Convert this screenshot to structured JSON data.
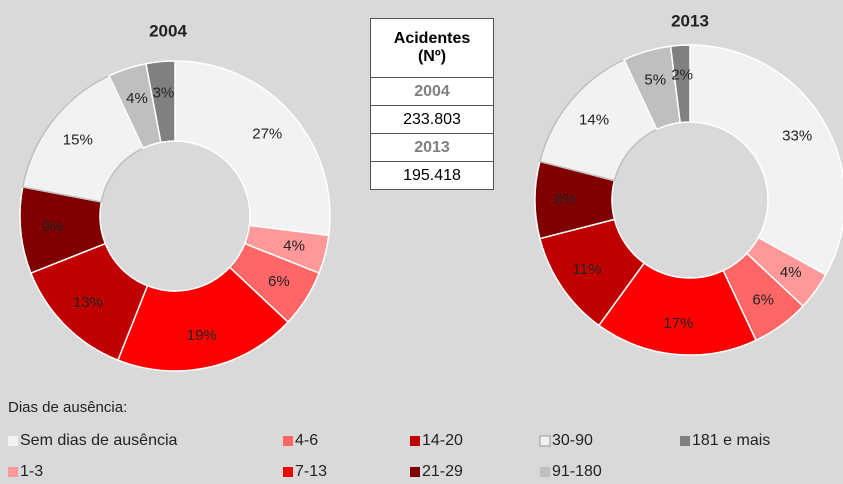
{
  "chart_data": {
    "type": "donut",
    "categories": [
      "Sem dias de ausência",
      "1-3",
      "4-6",
      "7-13",
      "14-20",
      "21-29",
      "30-90",
      "91-180",
      "181 e mais"
    ],
    "colors": [
      "#f2f2f2",
      "#ff9999",
      "#ff6666",
      "#ff0000",
      "#c00000",
      "#800000",
      "#f2f2f2",
      "#bfbfbf",
      "#808080"
    ],
    "legend_title": "Dias de ausência:",
    "series": [
      {
        "name": "2004",
        "values": [
          27,
          4,
          6,
          19,
          13,
          9,
          15,
          4,
          3
        ],
        "value_labels": [
          "27%",
          "4%",
          "6%",
          "19%",
          "13%",
          "9%",
          "15%",
          "4%",
          "3%"
        ]
      },
      {
        "name": "2013",
        "values": [
          33,
          4,
          6,
          17,
          11,
          8,
          14,
          5,
          2
        ],
        "value_labels": [
          "33%",
          "4%",
          "6%",
          "17%",
          "11%",
          "8%",
          "14%",
          "5%",
          "2%"
        ]
      }
    ]
  },
  "table": {
    "header": "Acidentes (Nº)",
    "rows": [
      "2004",
      "233.803",
      "2013",
      "195.418"
    ]
  }
}
